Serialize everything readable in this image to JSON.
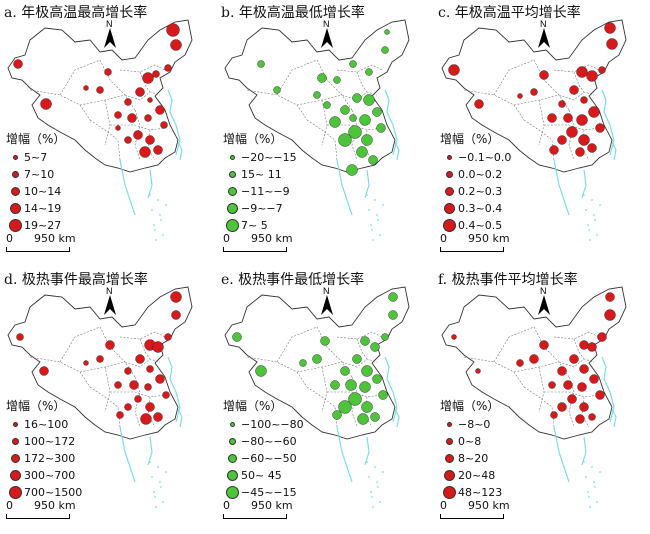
{
  "colors": {
    "red": "#d7191c",
    "green": "#4dc43a",
    "border": "#333333",
    "water": "#7fdbe8"
  },
  "legend_title": "增幅（%）",
  "scale_zero": "0",
  "scale_label": "950 km",
  "north_label": "N",
  "panels": [
    {
      "title": "a. 年极高温最高增长率",
      "color": "red",
      "legend": [
        "5~7",
        "7~10",
        "10~14",
        "14~19",
        "19~27"
      ]
    },
    {
      "title": "b. 年极高温最低增长率",
      "color": "green",
      "legend": [
        "−20~−15",
        "15~ 11",
        "−11~−9",
        "−9~−7",
        "7~ 5"
      ]
    },
    {
      "title": "c. 年极高温平均增长率",
      "color": "red",
      "legend": [
        "−0.1~0.0",
        "0.0~0.2",
        "0.2~0.3",
        "0.3~0.4",
        "0.4~0.5"
      ]
    },
    {
      "title": "d. 极热事件最高增长率",
      "color": "red",
      "legend": [
        "16~100",
        "100~172",
        "172~300",
        "300~700",
        "700~1500"
      ]
    },
    {
      "title": "e. 极热事件最低增长率",
      "color": "green",
      "legend": [
        "−100~−80",
        "−80~−60",
        "−60~−50",
        "50~ 45",
        "−45~−15"
      ]
    },
    {
      "title": "f. 极热事件平均增长率",
      "color": "red",
      "legend": [
        "−8~0",
        "0~8",
        "8~20",
        "20~48",
        "48~123"
      ]
    }
  ]
}
